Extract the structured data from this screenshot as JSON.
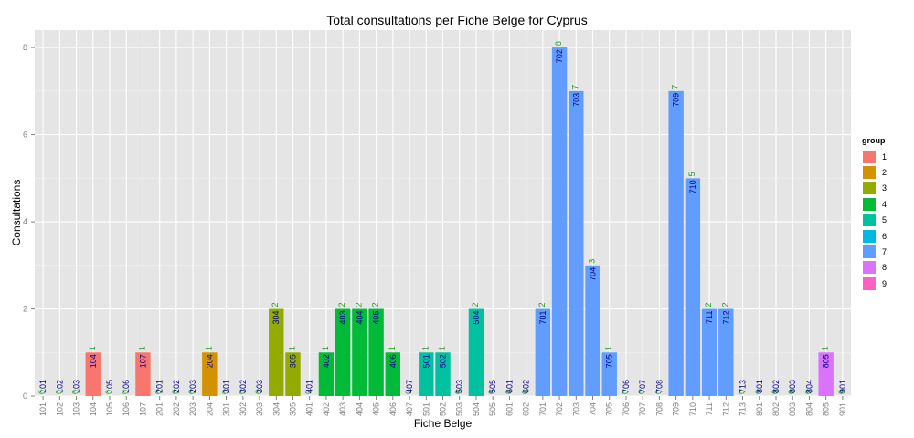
{
  "chart_data": {
    "type": "bar",
    "title": "Total consultations per Fiche Belge for Cyprus",
    "xlabel": "Fiche Belge",
    "ylabel": "Consultations",
    "ylim": [
      0,
      8.4
    ],
    "yticks": [
      0,
      2,
      4,
      6,
      8
    ],
    "grid": true,
    "legend_title": "group",
    "legend_position": "right",
    "groups": [
      {
        "name": "1",
        "color": "#F8766D"
      },
      {
        "name": "2",
        "color": "#D39200"
      },
      {
        "name": "3",
        "color": "#93AA00"
      },
      {
        "name": "4",
        "color": "#00BA38"
      },
      {
        "name": "5",
        "color": "#00C19F"
      },
      {
        "name": "6",
        "color": "#00B9E3"
      },
      {
        "name": "7",
        "color": "#619CFF"
      },
      {
        "name": "8",
        "color": "#DB72FB"
      },
      {
        "name": "9",
        "color": "#FF61C3"
      }
    ],
    "categories": [
      "101",
      "102",
      "103",
      "104",
      "105",
      "106",
      "107",
      "201",
      "202",
      "203",
      "204",
      "301",
      "302",
      "303",
      "304",
      "305",
      "401",
      "402",
      "403",
      "404",
      "405",
      "406",
      "407",
      "501",
      "502",
      "503",
      "504",
      "505",
      "601",
      "602",
      "701",
      "702",
      "703",
      "704",
      "705",
      "706",
      "707",
      "708",
      "709",
      "710",
      "711",
      "712",
      "713",
      "801",
      "802",
      "803",
      "804",
      "805",
      "901"
    ],
    "values": [
      0,
      0,
      0,
      1,
      0,
      0,
      1,
      0,
      0,
      0,
      1,
      0,
      0,
      0,
      2,
      1,
      0,
      1,
      2,
      2,
      2,
      1,
      0,
      1,
      1,
      0,
      2,
      0,
      0,
      0,
      2,
      8,
      7,
      3,
      1,
      0,
      0,
      0,
      7,
      5,
      2,
      2,
      0,
      0,
      0,
      0,
      0,
      1,
      0
    ],
    "bar_groups": [
      "1",
      "1",
      "1",
      "1",
      "1",
      "1",
      "1",
      "2",
      "2",
      "2",
      "2",
      "3",
      "3",
      "3",
      "3",
      "3",
      "4",
      "4",
      "4",
      "4",
      "4",
      "4",
      "4",
      "5",
      "5",
      "5",
      "5",
      "5",
      "6",
      "6",
      "7",
      "7",
      "7",
      "7",
      "7",
      "7",
      "7",
      "7",
      "7",
      "7",
      "7",
      "7",
      "7",
      "8",
      "8",
      "8",
      "8",
      "8",
      "9"
    ]
  }
}
